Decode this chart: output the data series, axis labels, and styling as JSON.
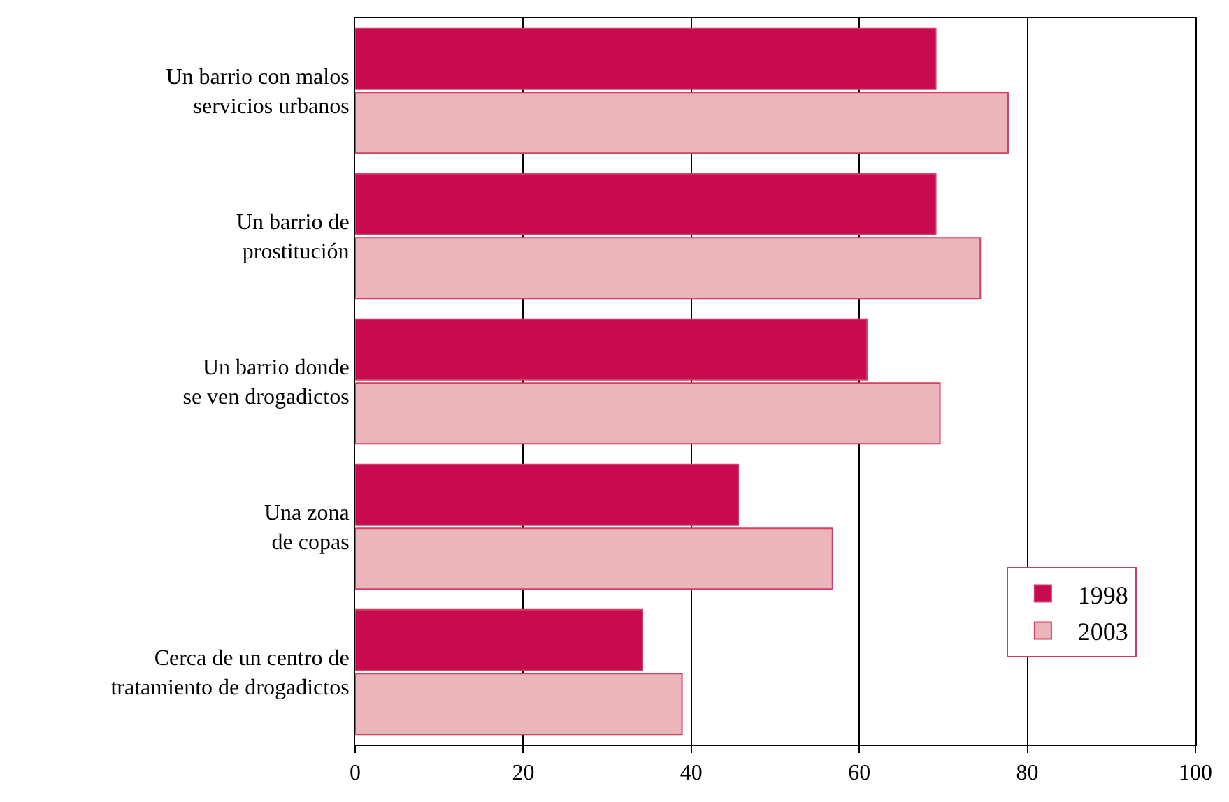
{
  "chart_data": {
    "type": "bar",
    "orientation": "horizontal",
    "categories": [
      "Un barrio con malos\nservicios urbanos",
      "Un barrio de\nprostitución",
      "Un barrio donde\nse ven drogadictos",
      "Una zona\nde copas",
      "Cerca de un centro de\ntratamiento de drogadictos"
    ],
    "series": [
      {
        "name": "1998",
        "color": "#c80a50",
        "values": [
          69.1,
          69.1,
          60.9,
          45.6,
          34.2
        ]
      },
      {
        "name": "2003",
        "color": "#ebb6bb",
        "values": [
          77.7,
          74.4,
          69.6,
          56.8,
          38.9
        ]
      }
    ],
    "xlim": [
      0,
      100
    ],
    "xticks": [
      0,
      20,
      40,
      60,
      80,
      100
    ],
    "grid": "x",
    "legend": "bottom right"
  }
}
